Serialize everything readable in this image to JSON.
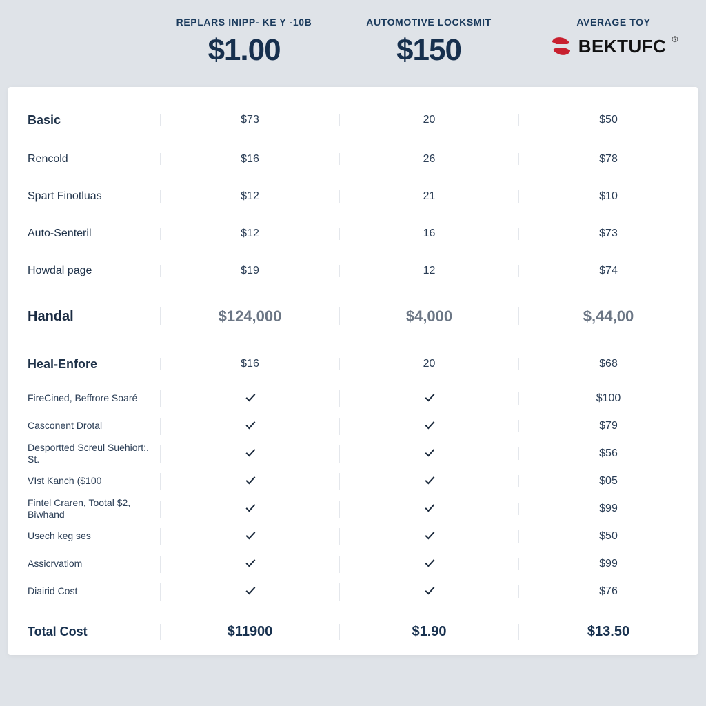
{
  "palette": {
    "page_bg": "#dfe3e8",
    "card_bg": "#ffffff",
    "header_navy": "#17304e",
    "label_subhead": "#1a3a5c",
    "text": "#1a2b42",
    "muted": "#2b3e56",
    "handal_gray": "#6b7685",
    "separator": "#e4e7ec",
    "brand_red": "#c8202f",
    "brand_black": "#111111"
  },
  "typography": {
    "header_label_size_pt": 10,
    "header_price_size_pt": 33,
    "row_label_size_pt": 12,
    "bold_row_label_size_pt": 14,
    "cell_size_pt": 12,
    "handal_size_pt": 17,
    "total_size_pt": 15,
    "brand_size_pt": 20
  },
  "header": {
    "cols": [
      {
        "label": "REPLARS INIPP- KE Y -10B",
        "price": "$1.00"
      },
      {
        "label": "AUTOMOTIVE LOCKSMIT",
        "price": "$150"
      },
      {
        "label": "AVERAGE TOY",
        "brand": "BEKTUFC"
      }
    ]
  },
  "rows": [
    {
      "type": "bold",
      "label": "Basic",
      "c": [
        "$73",
        "20",
        "$50"
      ]
    },
    {
      "type": "normal",
      "label": "Rencold",
      "c": [
        "$16",
        "26",
        "$78"
      ]
    },
    {
      "type": "normal",
      "label": "Spart Finotluas",
      "c": [
        "$12",
        "21",
        "$10"
      ]
    },
    {
      "type": "normal",
      "label": "Auto-Senteril",
      "c": [
        "$12",
        "16",
        "$73"
      ]
    },
    {
      "type": "normal",
      "label": "Howdal page",
      "c": [
        "$19",
        "12",
        "$74"
      ]
    },
    {
      "type": "handal",
      "label": "Handal",
      "c": [
        "$124,000",
        "$4,000",
        "$,44,00"
      ]
    },
    {
      "type": "bold",
      "label": "Heal-Enfore",
      "c": [
        "$16",
        "20",
        "$68"
      ]
    },
    {
      "type": "small",
      "label": "FireCined, Beffrore Soaré",
      "c": [
        "check",
        "check",
        "$100"
      ]
    },
    {
      "type": "small",
      "label": "Casconent Drotal",
      "c": [
        "check",
        "check",
        "$79"
      ]
    },
    {
      "type": "small",
      "label": "Desportted Screul Suehiort:. St.",
      "c": [
        "check",
        "check",
        "$56"
      ]
    },
    {
      "type": "small",
      "label": "VIst Kanch ($100",
      "c": [
        "check",
        "check",
        "$05"
      ]
    },
    {
      "type": "small",
      "label": "Fintel Craren, Tootal $2, Biwhand",
      "c": [
        "check",
        "check",
        "$99"
      ]
    },
    {
      "type": "small",
      "label": "Usech keg ses",
      "c": [
        "check",
        "check",
        "$50"
      ]
    },
    {
      "type": "small",
      "label": "Assicrvatiom",
      "c": [
        "check",
        "check",
        "$99"
      ]
    },
    {
      "type": "small",
      "label": "Diairid Cost",
      "c": [
        "check",
        "check",
        "$76"
      ]
    },
    {
      "type": "total",
      "label": "Total Cost",
      "c": [
        "$11900",
        "$1.90",
        "$13.50"
      ]
    }
  ]
}
